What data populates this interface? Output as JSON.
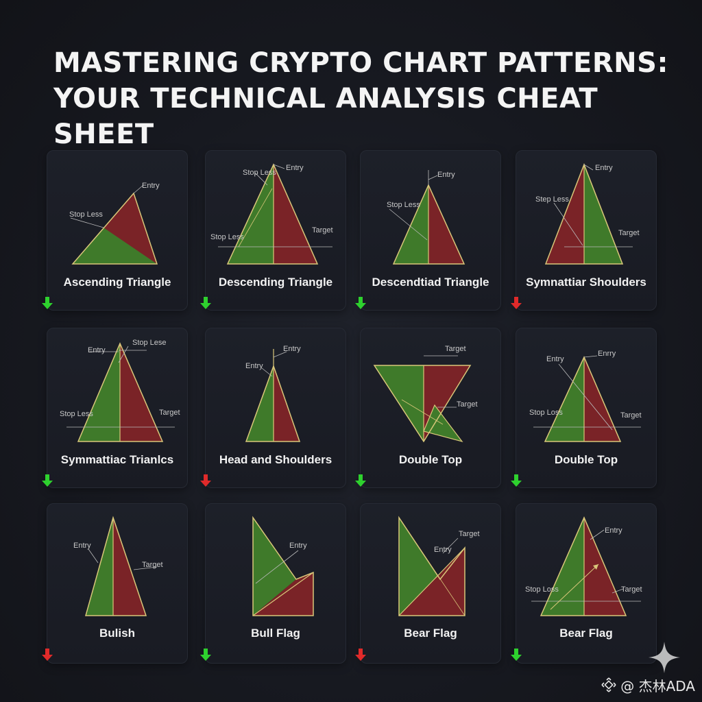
{
  "header": {
    "title_line1": "MASTERING CRYPTO CHART PATTERNS:",
    "title_line2": "YOUR TECHNICAL ANALYSIS CHEAT SHEET"
  },
  "colors": {
    "bull": "#3f7a2a",
    "bear": "#7a2327",
    "outline": "#d9c77a",
    "arrow_up": "#2ed12e",
    "arrow_down": "#e02a2a"
  },
  "patterns": [
    {
      "label": "Ascending Triangle",
      "arrow": "down",
      "arrow_color": "green",
      "annotations": [
        "Entry",
        "Stop Less"
      ]
    },
    {
      "label": "Descending Triangle",
      "arrow": "down",
      "arrow_color": "green",
      "annotations": [
        "Stop Less",
        "Entry",
        "Target",
        "Stop Less"
      ]
    },
    {
      "label": "Descendtiad Triangle",
      "arrow": "down",
      "arrow_color": "green",
      "annotations": [
        "Entry",
        "Stop Less"
      ]
    },
    {
      "label": "Symnattiar Shoulders",
      "arrow": "down",
      "arrow_color": "red",
      "annotations": [
        "Entry",
        "Step Less",
        "Target"
      ]
    },
    {
      "label": "Symmattiac Trianlcs",
      "arrow": "down",
      "arrow_color": "green",
      "annotations": [
        "Stop Lese",
        "Entry",
        "Stop Less",
        "Target"
      ]
    },
    {
      "label": "Head and Shoulders",
      "arrow": "down",
      "arrow_color": "red",
      "annotations": [
        "Entry",
        "Entry"
      ]
    },
    {
      "label": "Double Top",
      "arrow": "down",
      "arrow_color": "green",
      "annotations": [
        "Target",
        "Target"
      ]
    },
    {
      "label": "Double Top",
      "arrow": "down",
      "arrow_color": "green",
      "annotations": [
        "Entry",
        "Enrry",
        "Stop Loss",
        "Target"
      ]
    },
    {
      "label": "Bulish",
      "arrow": "down",
      "arrow_color": "red",
      "annotations": [
        "Entry",
        "Target"
      ]
    },
    {
      "label": "Bull Flag",
      "arrow": "down",
      "arrow_color": "green",
      "annotations": [
        "Entry"
      ]
    },
    {
      "label": "Bear Flag",
      "arrow": "down",
      "arrow_color": "red",
      "annotations": [
        "Target",
        "Entry"
      ]
    },
    {
      "label": "Bear Flag",
      "arrow": "down",
      "arrow_color": "green",
      "annotations": [
        "Entry",
        "Stop Loss",
        "Target"
      ]
    }
  ],
  "watermark": {
    "text": "@ 杰林ADA"
  }
}
